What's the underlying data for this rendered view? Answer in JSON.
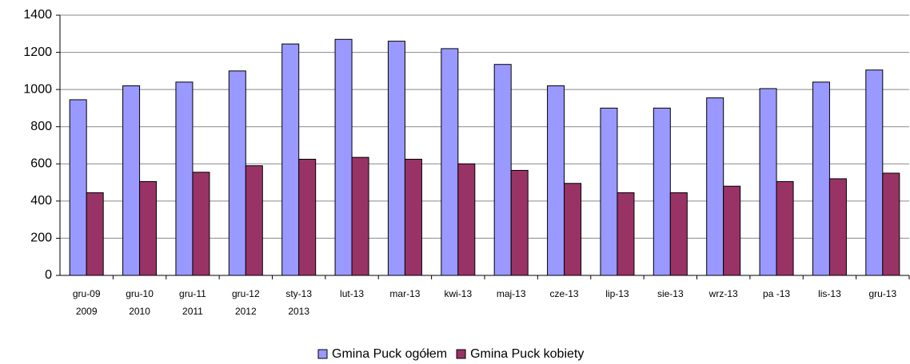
{
  "chart_data": {
    "type": "bar",
    "categories": [
      [
        "gru-09",
        "2009"
      ],
      [
        "gru-10",
        "2010"
      ],
      [
        "gru-11",
        "2011"
      ],
      [
        "gru-12",
        "2012"
      ],
      [
        "sty-13",
        "2013"
      ],
      [
        "lut-13"
      ],
      [
        "mar-13"
      ],
      [
        "kwi-13"
      ],
      [
        "maj-13"
      ],
      [
        "cze-13"
      ],
      [
        "lip-13"
      ],
      [
        "sie-13"
      ],
      [
        "wrz-13"
      ],
      [
        "pa -13"
      ],
      [
        "lis-13"
      ],
      [
        "gru-13"
      ]
    ],
    "series": [
      {
        "name": "Gmina Puck ogółem",
        "color": "#9999ff",
        "values": [
          945,
          1020,
          1040,
          1100,
          1245,
          1270,
          1260,
          1220,
          1135,
          1020,
          900,
          900,
          955,
          1005,
          1040,
          1105
        ]
      },
      {
        "name": "Gmina Puck kobiety",
        "color": "#993366",
        "values": [
          445,
          505,
          555,
          590,
          625,
          635,
          625,
          600,
          565,
          495,
          445,
          445,
          480,
          505,
          520,
          550
        ]
      }
    ],
    "ylim": [
      0,
      1400
    ],
    "yticks": [
      0,
      200,
      400,
      600,
      800,
      1000,
      1200,
      1400
    ],
    "grid": true,
    "legend": "bottom"
  }
}
